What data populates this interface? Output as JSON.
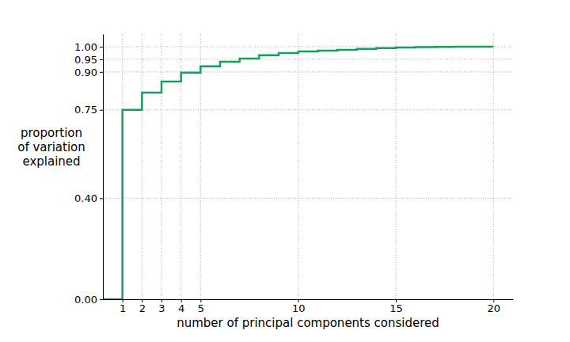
{
  "chart_data": {
    "type": "step",
    "xlabel": "number of principal components considered",
    "ylabel": "proportion\nof variation\nexplained",
    "x": [
      0,
      1,
      2,
      3,
      4,
      5,
      6,
      7,
      8,
      9,
      10,
      11,
      12,
      13,
      14,
      15,
      16,
      17,
      18,
      19,
      20
    ],
    "values": [
      0,
      0.75,
      0.818,
      0.862,
      0.897,
      0.922,
      0.94,
      0.953,
      0.966,
      0.975,
      0.981,
      0.984,
      0.987,
      0.991,
      0.994,
      0.997,
      0.998,
      0.999,
      1.0,
      1.0,
      1.0
    ],
    "color": "#17a05a",
    "xlim": [
      0,
      21
    ],
    "xticks": [
      1,
      2,
      3,
      4,
      5,
      10,
      15,
      20
    ],
    "ylim": [
      0,
      1.05
    ],
    "yticks": [
      {
        "value": 0,
        "label": "0.00"
      },
      {
        "value": 0.4,
        "label": "0.40"
      },
      {
        "value": 0.75,
        "label": "0.75"
      },
      {
        "value": 0.9,
        "label": "0.90"
      },
      {
        "value": 0.95,
        "label": "0.95"
      },
      {
        "value": 1.0,
        "label": "1.00"
      }
    ],
    "grid": true
  }
}
